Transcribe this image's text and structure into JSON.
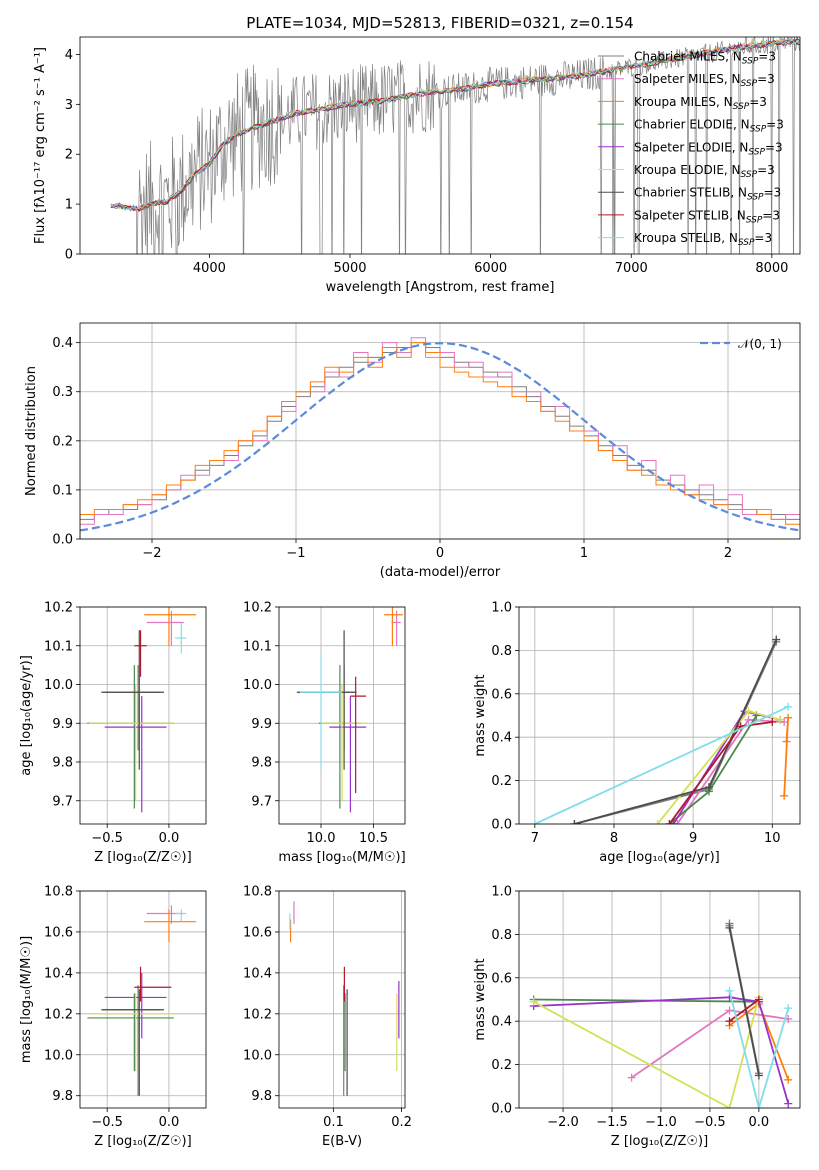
{
  "figure_title": "PLATE=1034, MJD=52813, FIBERID=0321, z=0.154",
  "colors": [
    "#7f7f7f",
    "#e377c2",
    "#ff7f0e",
    "#4c8a4c",
    "#9932cc",
    "#d4e157",
    "#4d4d4d",
    "#b2182b",
    "#80deea"
  ],
  "legend_prefix": [
    "Chabrier MILES",
    "Salpeter MILES",
    "Kroupa MILES",
    "Chabrier ELODIE",
    "Salpeter ELODIE",
    "Kroupa ELODIE",
    "Chabrier STELIB",
    "Salpeter STELIB",
    "Kroupa STELIB"
  ],
  "nssp_label": {
    "base": "N",
    "sub": "SSP",
    "suffix": "=3"
  },
  "normal_legend": "𝒩(0, 1)",
  "chart_data": [
    {
      "id": "spectrum",
      "type": "line",
      "title": "PLATE=1034, MJD=52813, FIBERID=0321, z=0.154",
      "xlabel": "wavelength [Angstrom, rest frame]",
      "ylabel": "Flux [fλ10⁻¹⁷ erg cm⁻² s⁻¹ A⁻¹]",
      "xlim": [
        3080,
        8200
      ],
      "ylim": [
        0,
        4.35
      ],
      "xticks": [
        "4000",
        "5000",
        "6000",
        "7000",
        "8000"
      ],
      "yticks": [
        "0",
        "1",
        "2",
        "3",
        "4"
      ],
      "legend_position": "top-right",
      "continuum": {
        "x": [
          3300,
          3400,
          3500,
          3600,
          3700,
          3800,
          3900,
          4000,
          4100,
          4200,
          4400,
          4600,
          4800,
          5000,
          5200,
          5400,
          5600,
          5800,
          6000,
          6200,
          6400,
          6600,
          6800,
          7000,
          7200,
          7400,
          7600,
          7800,
          8000,
          8100
        ],
        "y": [
          0.97,
          0.93,
          0.9,
          1.0,
          1.05,
          1.25,
          1.6,
          1.8,
          2.2,
          2.4,
          2.6,
          2.8,
          2.9,
          3.0,
          3.05,
          3.15,
          3.25,
          3.3,
          3.4,
          3.45,
          3.5,
          3.55,
          3.65,
          3.75,
          3.85,
          3.95,
          4.05,
          4.15,
          4.2,
          4.25
        ]
      }
    },
    {
      "id": "residuals",
      "type": "histogram",
      "xlabel": "(data-model)/error",
      "ylabel": "Normed distribution",
      "xlim": [
        -2.5,
        2.5
      ],
      "ylim": [
        0,
        0.44
      ],
      "xticks": [
        "−2",
        "−1",
        "0",
        "1",
        "2"
      ],
      "yticks": [
        "0.0",
        "0.1",
        "0.2",
        "0.3",
        "0.4"
      ],
      "legend_position": "top-right",
      "bins": [
        -2.5,
        -2.4,
        -2.3,
        -2.2,
        -2.1,
        -2.0,
        -1.9,
        -1.8,
        -1.7,
        -1.6,
        -1.5,
        -1.4,
        -1.3,
        -1.2,
        -1.1,
        -1.0,
        -0.9,
        -0.8,
        -0.7,
        -0.6,
        -0.5,
        -0.4,
        -0.3,
        -0.2,
        -0.1,
        0.0,
        0.1,
        0.2,
        0.3,
        0.4,
        0.5,
        0.6,
        0.7,
        0.8,
        0.9,
        1.0,
        1.1,
        1.2,
        1.3,
        1.4,
        1.5,
        1.6,
        1.7,
        1.8,
        1.9,
        2.0,
        2.1,
        2.2,
        2.3,
        2.4,
        2.5
      ],
      "series": [
        {
          "values": [
            0.04,
            0.05,
            0.06,
            0.06,
            0.07,
            0.08,
            0.1,
            0.12,
            0.14,
            0.15,
            0.17,
            0.19,
            0.21,
            0.24,
            0.27,
            0.29,
            0.31,
            0.33,
            0.35,
            0.36,
            0.37,
            0.38,
            0.39,
            0.4,
            0.39,
            0.37,
            0.36,
            0.35,
            0.34,
            0.33,
            0.31,
            0.29,
            0.27,
            0.25,
            0.23,
            0.21,
            0.19,
            0.17,
            0.15,
            0.14,
            0.12,
            0.11,
            0.1,
            0.09,
            0.08,
            0.07,
            0.06,
            0.05,
            0.05,
            0.04
          ]
        },
        {
          "values": [
            0.03,
            0.05,
            0.05,
            0.07,
            0.07,
            0.09,
            0.1,
            0.13,
            0.13,
            0.16,
            0.16,
            0.2,
            0.2,
            0.25,
            0.26,
            0.3,
            0.3,
            0.34,
            0.33,
            0.38,
            0.36,
            0.4,
            0.38,
            0.41,
            0.37,
            0.38,
            0.35,
            0.36,
            0.33,
            0.34,
            0.3,
            0.3,
            0.26,
            0.27,
            0.22,
            0.22,
            0.18,
            0.19,
            0.14,
            0.16,
            0.11,
            0.13,
            0.09,
            0.11,
            0.07,
            0.09,
            0.05,
            0.06,
            0.04,
            0.05
          ]
        },
        {
          "values": [
            0.05,
            0.06,
            0.06,
            0.07,
            0.08,
            0.09,
            0.11,
            0.12,
            0.15,
            0.16,
            0.18,
            0.2,
            0.22,
            0.25,
            0.28,
            0.3,
            0.32,
            0.35,
            0.34,
            0.37,
            0.35,
            0.39,
            0.37,
            0.4,
            0.38,
            0.35,
            0.34,
            0.33,
            0.32,
            0.31,
            0.29,
            0.28,
            0.26,
            0.24,
            0.22,
            0.2,
            0.18,
            0.16,
            0.14,
            0.13,
            0.11,
            0.1,
            0.09,
            0.08,
            0.07,
            0.06,
            0.06,
            0.05,
            0.04,
            0.03
          ]
        }
      ],
      "normal": {
        "mu": 0,
        "sigma": 1,
        "style": "dashed"
      }
    },
    {
      "id": "age-vs-Z",
      "type": "errorbar",
      "xlabel": "Z [log₁₀(Z/Z☉)]",
      "ylabel": "age  [log₁₀(age/yr)]",
      "xlim": [
        -0.72,
        0.3
      ],
      "ylim": [
        9.64,
        10.2
      ],
      "xticks": [
        "−0.5",
        "0.0"
      ],
      "yticks": [
        "9.7",
        "9.8",
        "9.9",
        "10.0",
        "10.1",
        "10.2"
      ],
      "points": [
        {
          "x": -0.25,
          "xerr": [
            0.3,
            0.18
          ],
          "y": 9.98,
          "yerr": [
            0.15,
            0.07
          ]
        },
        {
          "x": 0.02,
          "xerr": [
            0.2,
            0.1
          ],
          "y": 10.16,
          "yerr": [
            0.06,
            0.03
          ]
        },
        {
          "x": 0.0,
          "xerr": [
            0.2,
            0.22
          ],
          "y": 10.18,
          "yerr": [
            0.08,
            0.03
          ]
        },
        {
          "x": -0.28,
          "xerr": [
            0.38,
            0.32
          ],
          "y": 9.9,
          "yerr": [
            0.22,
            0.15
          ]
        },
        {
          "x": -0.22,
          "xerr": [
            0.3,
            0.2
          ],
          "y": 9.89,
          "yerr": [
            0.22,
            0.08
          ]
        },
        {
          "x": -0.27,
          "xerr": [
            0.38,
            0.32
          ],
          "y": 9.9,
          "yerr": [
            0.2,
            0.1
          ]
        },
        {
          "x": -0.24,
          "xerr": [
            0.3,
            0.2
          ],
          "y": 9.98,
          "yerr": [
            0.2,
            0.16
          ]
        },
        {
          "x": -0.23,
          "xerr": [
            0.05,
            0.05
          ],
          "y": 10.1,
          "yerr": [
            0.08,
            0.04
          ]
        },
        {
          "x": 0.1,
          "xerr": [
            0.05,
            0.04
          ],
          "y": 10.12,
          "yerr": [
            0.04,
            0.04
          ]
        }
      ]
    },
    {
      "id": "age-vs-mass",
      "type": "errorbar",
      "xlabel": "mass [log₁₀(M/M☉)]",
      "ylabel": "",
      "xlim": [
        9.6,
        10.8
      ],
      "ylim": [
        9.64,
        10.2
      ],
      "xticks": [
        "10.0",
        "10.5"
      ],
      "yticks": [
        "9.7",
        "9.8",
        "9.9",
        "10.0",
        "10.1",
        "10.2"
      ],
      "points": [
        {
          "x": 10.22,
          "xerr": [
            0.44,
            0.12
          ],
          "y": 9.98,
          "yerr": [
            0.15,
            0.07
          ]
        },
        {
          "x": 10.72,
          "xerr": [
            0.05,
            0.04
          ],
          "y": 10.16,
          "yerr": [
            0.06,
            0.03
          ]
        },
        {
          "x": 10.68,
          "xerr": [
            0.08,
            0.1
          ],
          "y": 10.18,
          "yerr": [
            0.08,
            0.03
          ]
        },
        {
          "x": 10.18,
          "xerr": [
            0.2,
            0.2
          ],
          "y": 9.9,
          "yerr": [
            0.22,
            0.15
          ]
        },
        {
          "x": 10.28,
          "xerr": [
            0.2,
            0.15
          ],
          "y": 9.89,
          "yerr": [
            0.22,
            0.08
          ]
        },
        {
          "x": 10.2,
          "xerr": [
            0.2,
            0.25
          ],
          "y": 9.9,
          "yerr": [
            0.2,
            0.1
          ]
        },
        {
          "x": 10.22,
          "xerr": [
            0.45,
            0.1
          ],
          "y": 9.98,
          "yerr": [
            0.2,
            0.16
          ]
        },
        {
          "x": 10.33,
          "xerr": [
            0.05,
            0.1
          ],
          "y": 9.97,
          "yerr": [
            0.25,
            0.05
          ]
        },
        {
          "x": 10.0,
          "xerr": [
            0.2,
            0.2
          ],
          "y": 9.98,
          "yerr": [
            0.2,
            0.1
          ]
        }
      ]
    },
    {
      "id": "weight-vs-age",
      "type": "line",
      "xlabel": "age  [log₁₀(age/yr)]",
      "ylabel": "mass weight",
      "xlim": [
        6.8,
        10.35
      ],
      "ylim": [
        0,
        1.0
      ],
      "xticks": [
        "7",
        "8",
        "9",
        "10"
      ],
      "yticks": [
        "0.0",
        "0.2",
        "0.4",
        "0.6",
        "0.8",
        "1.0"
      ],
      "series": [
        {
          "x": [
            7.5,
            9.2,
            10.05
          ],
          "y": [
            0.0,
            0.16,
            0.84
          ]
        },
        {
          "x": [
            8.8,
            9.7,
            10.15
          ],
          "y": [
            0.0,
            0.48,
            0.47
          ]
        },
        {
          "x": [
            10.15,
            10.2,
            10.18
          ],
          "y": [
            0.13,
            0.49,
            0.38
          ]
        },
        {
          "x": [
            8.7,
            9.2,
            9.8
          ],
          "y": [
            0.0,
            0.15,
            0.5
          ]
        },
        {
          "x": [
            8.75,
            9.65,
            10.1
          ],
          "y": [
            0.0,
            0.52,
            0.48
          ]
        },
        {
          "x": [
            8.55,
            9.7,
            10.1
          ],
          "y": [
            0.0,
            0.52,
            0.48
          ]
        },
        {
          "x": [
            7.5,
            9.2,
            10.05
          ],
          "y": [
            0.0,
            0.17,
            0.85
          ]
        },
        {
          "x": [
            8.7,
            9.6,
            10.0
          ],
          "y": [
            0.0,
            0.45,
            0.47
          ]
        },
        {
          "x": [
            7.0,
            10.2
          ],
          "y": [
            0.0,
            0.54
          ]
        }
      ]
    },
    {
      "id": "mass-vs-Z",
      "type": "errorbar",
      "xlabel": "Z [log₁₀(Z/Z☉)]",
      "ylabel": "mass [log₁₀(M/M☉)]",
      "xlim": [
        -0.72,
        0.3
      ],
      "ylim": [
        9.74,
        10.8
      ],
      "xticks": [
        "−0.5",
        "0.0"
      ],
      "yticks": [
        "9.8",
        "10.0",
        "10.2",
        "10.4",
        "10.6",
        "10.8"
      ],
      "points": [
        {
          "x": -0.25,
          "xerr": [
            0.3,
            0.18
          ],
          "y": 10.22,
          "yerr": [
            0.42,
            0.12
          ]
        },
        {
          "x": 0.02,
          "xerr": [
            0.2,
            0.1
          ],
          "y": 10.69,
          "yerr": [
            0.05,
            0.04
          ]
        },
        {
          "x": 0.0,
          "xerr": [
            0.2,
            0.22
          ],
          "y": 10.65,
          "yerr": [
            0.1,
            0.06
          ]
        },
        {
          "x": -0.28,
          "xerr": [
            0.38,
            0.32
          ],
          "y": 10.18,
          "yerr": [
            0.26,
            0.12
          ]
        },
        {
          "x": -0.22,
          "xerr": [
            0.3,
            0.2
          ],
          "y": 10.28,
          "yerr": [
            0.2,
            0.12
          ]
        },
        {
          "x": -0.27,
          "xerr": [
            0.38,
            0.32
          ],
          "y": 10.2,
          "yerr": [
            0.28,
            0.1
          ]
        },
        {
          "x": -0.24,
          "xerr": [
            0.3,
            0.2
          ],
          "y": 10.22,
          "yerr": [
            0.42,
            0.1
          ]
        },
        {
          "x": -0.23,
          "xerr": [
            0.05,
            0.25
          ],
          "y": 10.33,
          "yerr": [
            0.07,
            0.1
          ]
        },
        {
          "x": 0.1,
          "xerr": [
            0.05,
            0.04
          ],
          "y": 10.69,
          "yerr": [
            0.04,
            0.02
          ]
        }
      ]
    },
    {
      "id": "mass-vs-EBV",
      "type": "errorbar",
      "xlabel": "E(B-V)",
      "ylabel": "",
      "xlim": [
        0.02,
        0.205
      ],
      "ylim": [
        9.74,
        10.8
      ],
      "xticks": [
        "0.1",
        "0.2"
      ],
      "yticks": [
        "9.8",
        "10.0",
        "10.2",
        "10.4",
        "10.6",
        "10.8"
      ],
      "points": [
        {
          "x": 0.115,
          "xerr": [
            0,
            0
          ],
          "y": 10.22,
          "yerr": [
            0.42,
            0.12
          ]
        },
        {
          "x": 0.042,
          "xerr": [
            0,
            0
          ],
          "y": 10.69,
          "yerr": [
            0.05,
            0.06
          ]
        },
        {
          "x": 0.037,
          "xerr": [
            0,
            0
          ],
          "y": 10.6,
          "yerr": [
            0.05,
            0.06
          ]
        },
        {
          "x": 0.117,
          "xerr": [
            0,
            0
          ],
          "y": 10.18,
          "yerr": [
            0.26,
            0.12
          ]
        },
        {
          "x": 0.196,
          "xerr": [
            0,
            0
          ],
          "y": 10.28,
          "yerr": [
            0.2,
            0.08
          ]
        },
        {
          "x": 0.193,
          "xerr": [
            0,
            0
          ],
          "y": 10.2,
          "yerr": [
            0.28,
            0.1
          ]
        },
        {
          "x": 0.12,
          "xerr": [
            0,
            0
          ],
          "y": 10.22,
          "yerr": [
            0.42,
            0.1
          ]
        },
        {
          "x": 0.116,
          "xerr": [
            0,
            0
          ],
          "y": 10.33,
          "yerr": [
            0.07,
            0.1
          ]
        },
        {
          "x": 0.036,
          "xerr": [
            0,
            0
          ],
          "y": 10.65,
          "yerr": [
            0.04,
            0.04
          ]
        }
      ]
    },
    {
      "id": "weight-vs-Z",
      "type": "line",
      "xlabel": "Z [log₁₀(Z/Z☉)]",
      "ylabel": "mass weight",
      "xlim": [
        -2.45,
        0.42
      ],
      "ylim": [
        0,
        1.0
      ],
      "xticks": [
        "−2.0",
        "−1.5",
        "−1.0",
        "−0.5",
        "0.0"
      ],
      "yticks": [
        "0.0",
        "0.2",
        "0.4",
        "0.6",
        "0.8",
        "1.0"
      ],
      "series": [
        {
          "x": [
            -0.3,
            -0.3,
            0.0
          ],
          "y": [
            0.85,
            0.84,
            0.16
          ]
        },
        {
          "x": [
            -1.3,
            -0.3,
            0.3
          ],
          "y": [
            0.14,
            0.45,
            0.41
          ]
        },
        {
          "x": [
            -0.3,
            0.0,
            0.3
          ],
          "y": [
            0.38,
            0.48,
            0.13
          ]
        },
        {
          "x": [
            -2.3,
            0.0
          ],
          "y": [
            0.5,
            0.49
          ]
        },
        {
          "x": [
            -2.3,
            -0.3,
            0.0,
            0.3
          ],
          "y": [
            0.47,
            0.51,
            0.49,
            0.02
          ]
        },
        {
          "x": [
            -2.3,
            -0.3,
            0.0
          ],
          "y": [
            0.49,
            0.0,
            0.51
          ]
        },
        {
          "x": [
            -0.3,
            0.0
          ],
          "y": [
            0.83,
            0.15
          ]
        },
        {
          "x": [
            -0.3,
            0.0
          ],
          "y": [
            0.4,
            0.5
          ]
        },
        {
          "x": [
            -0.3,
            0.0,
            0.3
          ],
          "y": [
            0.54,
            0.0,
            0.46
          ]
        }
      ]
    }
  ]
}
